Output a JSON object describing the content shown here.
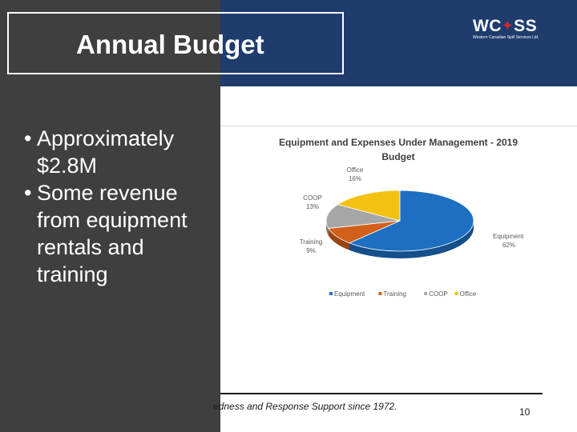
{
  "slide": {
    "title": "Annual Budget",
    "bullets": [
      "Approximately $2.8M",
      "Some revenue from equipment rentals and training"
    ],
    "bullet_glyph": "•",
    "footer_text": "edness and Response Support since 1972.",
    "page_number": "10"
  },
  "logo": {
    "text_left": "WC",
    "text_right": "SS",
    "leaf_icon": "maple-leaf-icon",
    "subtitle": "Western Canadian Spill Services Ltd."
  },
  "colors": {
    "header_blue": "#1f3c6d",
    "panel_gray": "#3f3f3f",
    "equipment": "#1e6fc2",
    "training": "#d2601a",
    "coop": "#a6a6a6",
    "office": "#f3c212"
  },
  "chart_data": {
    "type": "pie",
    "title": "Equipment and Expenses Under Management - 2019 Budget",
    "title_line1": "Equipment and Expenses Under Management - 2019",
    "title_line2": "Budget",
    "slices": [
      {
        "name": "Equipment",
        "value": 62,
        "label": "62%"
      },
      {
        "name": "Training",
        "value": 9,
        "label": "9%"
      },
      {
        "name": "COOP",
        "value": 13,
        "label": "13%"
      },
      {
        "name": "Office",
        "value": 16,
        "label": "16%"
      }
    ],
    "legend": [
      "Equipment",
      "Training",
      "COOP",
      "Office"
    ],
    "legend_position": "bottom"
  }
}
